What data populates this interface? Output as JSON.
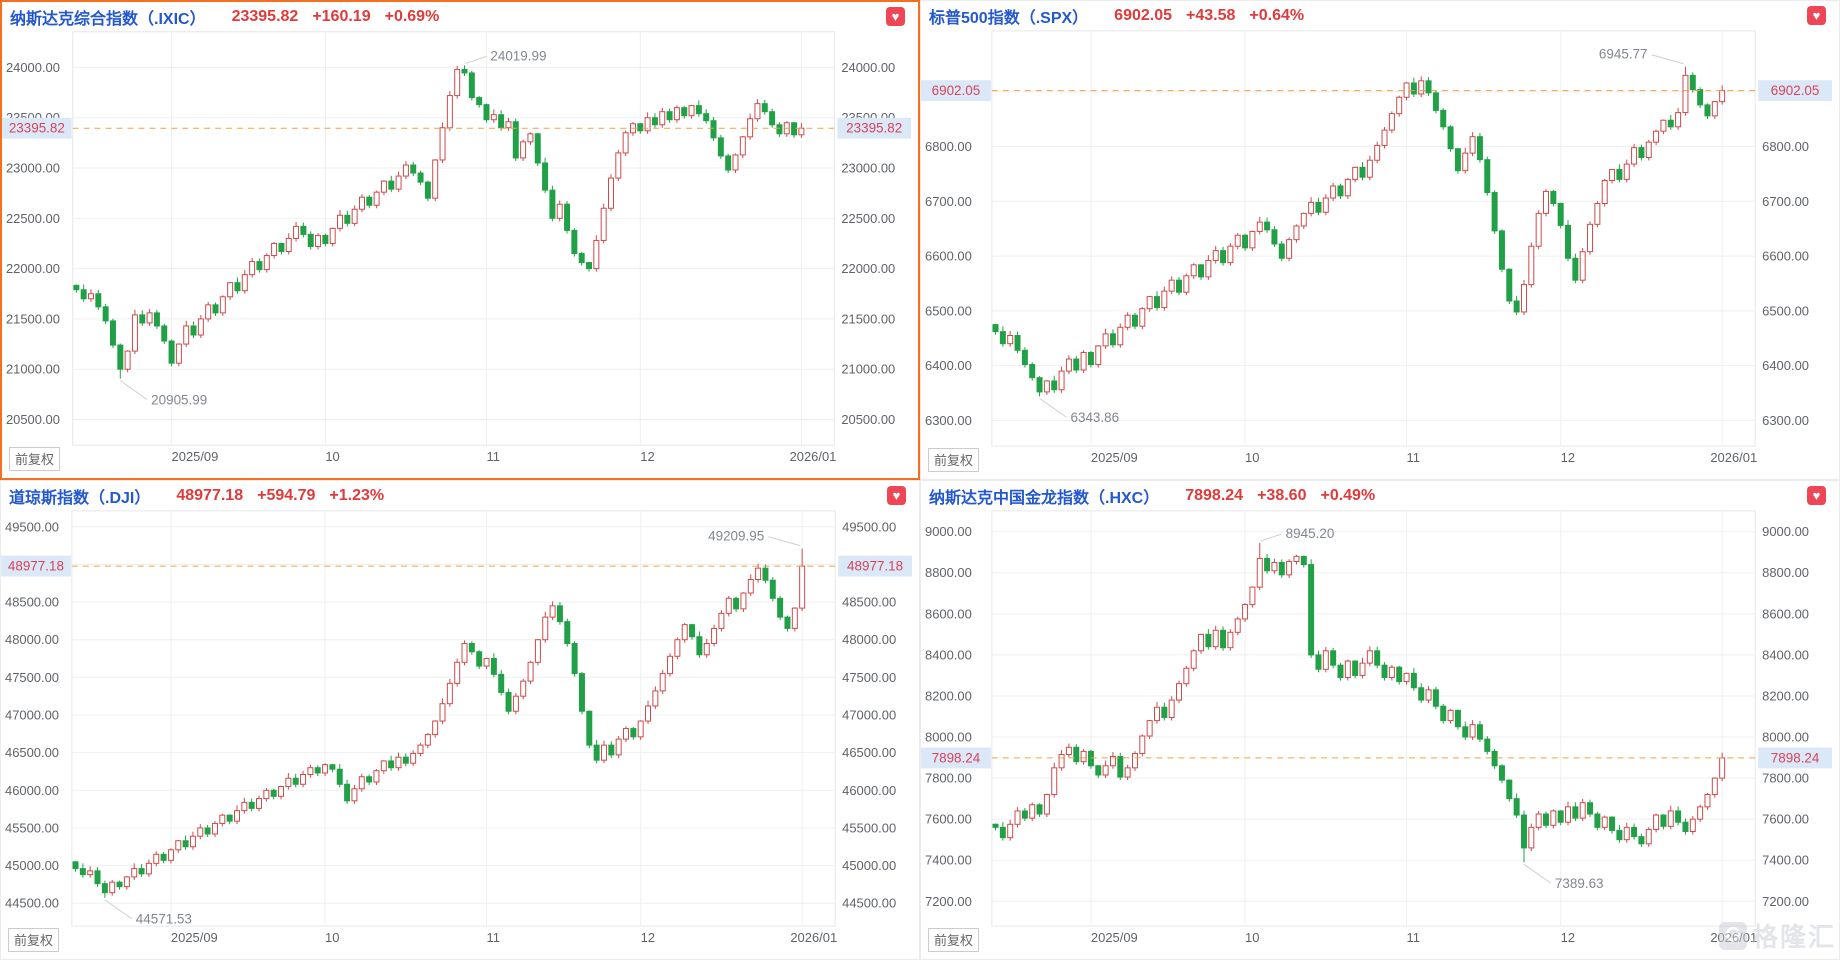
{
  "ui": {
    "adj_button": "前复权",
    "watermark_text": "格隆汇",
    "favorite_icon": "heart",
    "colors": {
      "grid": "#efefef",
      "grid_border": "#e7e7e7",
      "tick": "#5f6368",
      "up": "#cf4a4a",
      "down": "#21a147",
      "dash": "#f0a143",
      "price_box_bg": "#dbe8f8",
      "price_box_text": "#d84457",
      "annotation": "#82878f",
      "leader": "#cfcfcf",
      "title": "#2458cf",
      "quote": "#e03b3b",
      "selected_border": "#f66f1e",
      "favorite": "#ef4655"
    }
  },
  "chart_data": [
    {
      "type": "candlestick",
      "title": "纳斯达克综合指数（.IXIC）",
      "price": "23395.82",
      "change": "+160.19",
      "change_pct": "+0.69%",
      "last_price": 23395.82,
      "ylim": [
        20244,
        24256
      ],
      "yticks": [
        24000,
        23500,
        23000,
        22500,
        22000,
        21500,
        21000,
        20500
      ],
      "x_slots": 104,
      "xticks": [
        {
          "day": 13,
          "label": "2025/09"
        },
        {
          "day": 34,
          "label": "10"
        },
        {
          "day": 56,
          "label": "11"
        },
        {
          "day": 77,
          "label": "12"
        },
        {
          "day": 99,
          "label": "2026/01",
          "end": true
        }
      ],
      "high_annotation": {
        "day": 53,
        "value": 24019.99,
        "label": "24019.99",
        "side": "right"
      },
      "low_annotation": {
        "day": 6,
        "value": 20905.99,
        "label": "20905.99",
        "side": "below"
      },
      "closes": [
        21790,
        21700,
        21750,
        21620,
        21480,
        21240,
        21000,
        21180,
        21540,
        21460,
        21560,
        21430,
        21280,
        21060,
        21250,
        21430,
        21340,
        21500,
        21640,
        21560,
        21720,
        21860,
        21780,
        21940,
        22070,
        21990,
        22130,
        22250,
        22170,
        22300,
        22420,
        22340,
        22220,
        22330,
        22250,
        22400,
        22530,
        22450,
        22590,
        22710,
        22630,
        22760,
        22870,
        22790,
        22920,
        23030,
        22950,
        22860,
        22700,
        23080,
        23400,
        23720,
        23980,
        23945,
        23700,
        23630,
        23480,
        23530,
        23400,
        23460,
        23100,
        23260,
        23340,
        23050,
        22780,
        22500,
        22640,
        22380,
        22150,
        22060,
        22000,
        22280,
        22600,
        22900,
        23150,
        23350,
        23440,
        23370,
        23500,
        23430,
        23560,
        23480,
        23600,
        23520,
        23620,
        23540,
        23470,
        23300,
        23120,
        22980,
        23130,
        23310,
        23490,
        23640,
        23560,
        23430,
        23340,
        23450,
        23330,
        23395.82
      ]
    },
    {
      "type": "candlestick",
      "title": "标普500指数（.SPX）",
      "price": "6902.05",
      "change": "+43.58",
      "change_pct": "+0.64%",
      "last_price": 6902.05,
      "ylim": [
        6253,
        6993
      ],
      "yticks": [
        6900,
        6800,
        6700,
        6600,
        6500,
        6400,
        6300
      ],
      "x_slots": 104,
      "xticks": [
        {
          "day": 13,
          "label": "2025/09"
        },
        {
          "day": 34,
          "label": "10"
        },
        {
          "day": 56,
          "label": "11"
        },
        {
          "day": 77,
          "label": "12"
        },
        {
          "day": 99,
          "label": "2026/01",
          "end": true
        }
      ],
      "high_annotation": {
        "day": 94,
        "value": 6945.77,
        "label": "6945.77",
        "side": "left"
      },
      "low_annotation": {
        "day": 6,
        "value": 6343.86,
        "label": "6343.86",
        "side": "below"
      },
      "closes": [
        6462,
        6440,
        6455,
        6428,
        6402,
        6378,
        6352,
        6372,
        6356,
        6390,
        6412,
        6392,
        6424,
        6402,
        6436,
        6458,
        6438,
        6470,
        6492,
        6472,
        6504,
        6526,
        6506,
        6536,
        6556,
        6534,
        6564,
        6584,
        6562,
        6592,
        6610,
        6588,
        6618,
        6638,
        6615,
        6645,
        6662,
        6648,
        6622,
        6596,
        6630,
        6655,
        6678,
        6698,
        6680,
        6706,
        6728,
        6710,
        6740,
        6762,
        6744,
        6775,
        6802,
        6830,
        6860,
        6890,
        6916,
        6896,
        6920,
        6898,
        6866,
        6836,
        6796,
        6756,
        6788,
        6818,
        6776,
        6716,
        6646,
        6576,
        6518,
        6498,
        6548,
        6618,
        6678,
        6718,
        6696,
        6656,
        6596,
        6556,
        6608,
        6658,
        6696,
        6738,
        6758,
        6740,
        6768,
        6798,
        6780,
        6808,
        6828,
        6848,
        6836,
        6862,
        6930,
        6904,
        6876,
        6856,
        6882,
        6902.05
      ]
    },
    {
      "type": "candlestick",
      "title": "道琼斯指数（.DJI）",
      "price": "48977.18",
      "change": "+594.79",
      "change_pct": "+1.23%",
      "last_price": 48977.18,
      "ylim": [
        44196,
        49579
      ],
      "yticks": [
        49500,
        49000,
        48500,
        48000,
        47500,
        47000,
        46500,
        46000,
        45500,
        45000,
        44500
      ],
      "x_slots": 104,
      "xticks": [
        {
          "day": 13,
          "label": "2025/09"
        },
        {
          "day": 34,
          "label": "10"
        },
        {
          "day": 56,
          "label": "11"
        },
        {
          "day": 77,
          "label": "12"
        },
        {
          "day": 99,
          "label": "2026/01",
          "end": true
        }
      ],
      "high_annotation": {
        "day": 99,
        "value": 49209.95,
        "label": "49209.95",
        "side": "left"
      },
      "low_annotation": {
        "day": 4,
        "value": 44571.53,
        "label": "44571.53",
        "side": "below"
      },
      "closes": [
        44960,
        44880,
        44930,
        44760,
        44640,
        44780,
        44720,
        44850,
        44960,
        44890,
        45030,
        45150,
        45070,
        45210,
        45330,
        45250,
        45390,
        45500,
        45420,
        45560,
        45670,
        45590,
        45730,
        45840,
        45760,
        45890,
        46000,
        45920,
        46050,
        46160,
        46080,
        46210,
        46300,
        46230,
        46340,
        46280,
        46080,
        45860,
        46020,
        46180,
        46110,
        46260,
        46390,
        46300,
        46440,
        46360,
        46490,
        46600,
        46740,
        46920,
        47150,
        47420,
        47700,
        47950,
        47840,
        47650,
        47750,
        47540,
        47300,
        47050,
        47250,
        47450,
        47700,
        48000,
        48300,
        48450,
        48240,
        47950,
        47550,
        47050,
        46600,
        46400,
        46600,
        46470,
        46680,
        46820,
        46710,
        46920,
        47120,
        47320,
        47550,
        47780,
        48000,
        48200,
        48040,
        47800,
        47950,
        48150,
        48350,
        48550,
        48410,
        48620,
        48800,
        48950,
        48790,
        48550,
        48300,
        48150,
        48420,
        48977.18
      ]
    },
    {
      "type": "candlestick",
      "title": "纳斯达克中国金龙指数（.HXC）",
      "price": "7898.24",
      "change": "+38.60",
      "change_pct": "+0.49%",
      "last_price": 7898.24,
      "ylim": [
        7079,
        9053
      ],
      "yticks": [
        9000,
        8800,
        8600,
        8400,
        8200,
        8000,
        7800,
        7600,
        7400,
        7200
      ],
      "x_slots": 104,
      "xticks": [
        {
          "day": 13,
          "label": "2025/09"
        },
        {
          "day": 34,
          "label": "10"
        },
        {
          "day": 56,
          "label": "11"
        },
        {
          "day": 77,
          "label": "12"
        },
        {
          "day": 99,
          "label": "2026/01",
          "end": true
        }
      ],
      "high_annotation": {
        "day": 36,
        "value": 8945.2,
        "label": "8945.20",
        "side": "right"
      },
      "low_annotation": {
        "day": 72,
        "value": 7389.63,
        "label": "7389.63",
        "side": "below"
      },
      "closes": [
        7560,
        7510,
        7575,
        7640,
        7605,
        7670,
        7625,
        7720,
        7850,
        7915,
        7950,
        7880,
        7930,
        7860,
        7815,
        7860,
        7905,
        7805,
        7850,
        7920,
        8005,
        8080,
        8145,
        8095,
        8180,
        8260,
        8335,
        8420,
        8500,
        8440,
        8520,
        8435,
        8510,
        8575,
        8645,
        8730,
        8870,
        8810,
        8850,
        8790,
        8855,
        8880,
        8840,
        8400,
        8330,
        8420,
        8350,
        8290,
        8370,
        8300,
        8360,
        8420,
        8350,
        8290,
        8340,
        8270,
        8310,
        8240,
        8180,
        8230,
        8150,
        8080,
        8130,
        8050,
        8000,
        8060,
        7990,
        7930,
        7860,
        7790,
        7700,
        7620,
        7460,
        7560,
        7625,
        7570,
        7640,
        7585,
        7660,
        7605,
        7680,
        7625,
        7560,
        7610,
        7545,
        7500,
        7560,
        7515,
        7480,
        7550,
        7620,
        7565,
        7640,
        7585,
        7540,
        7600,
        7660,
        7720,
        7800,
        7898.24
      ]
    }
  ]
}
